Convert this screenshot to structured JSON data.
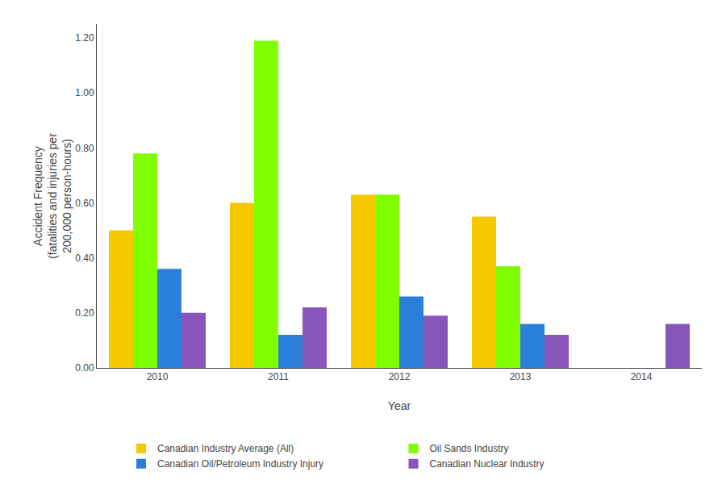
{
  "chart_data": {
    "type": "bar",
    "categories": [
      "2010",
      "2011",
      "2012",
      "2013",
      "2014"
    ],
    "series": [
      {
        "name": "Canadian Industry Average (All)",
        "color": "#f5c800",
        "values": [
          0.5,
          0.6,
          0.63,
          0.55,
          0.0
        ]
      },
      {
        "name": "Oil Sands Industry",
        "color": "#7fff00",
        "values": [
          0.78,
          1.19,
          0.63,
          0.37,
          0.0
        ]
      },
      {
        "name": "Canadian Oil/Petroleum Industry Injury",
        "color": "#2b7fdb",
        "values": [
          0.36,
          0.12,
          0.26,
          0.16,
          0.0
        ]
      },
      {
        "name": "Canadian Nuclear Industry",
        "color": "#8855bb",
        "values": [
          0.2,
          0.22,
          0.19,
          0.12,
          0.16
        ]
      }
    ],
    "xlabel": "Year",
    "ylabel": "Accident Frequency\n(fatalities and injuries per\n200,000 person-hours)",
    "ylim": [
      0.0,
      1.25
    ],
    "yticks": [
      {
        "value": 0.0,
        "label": "0.00"
      },
      {
        "value": 0.2,
        "label": "0.20"
      },
      {
        "value": 0.4,
        "label": "0.40"
      },
      {
        "value": 0.6,
        "label": "0.60"
      },
      {
        "value": 0.8,
        "label": "0.80"
      },
      {
        "value": 1.0,
        "label": "1.00"
      },
      {
        "value": 1.2,
        "label": "1.20"
      }
    ],
    "grid": false,
    "legend": "bottom"
  }
}
